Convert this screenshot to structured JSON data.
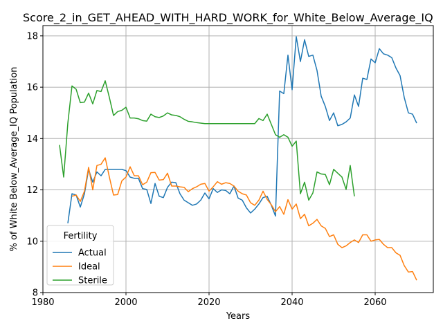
{
  "chart_data": {
    "type": "line",
    "title": "Score_2_in_GET_AHEAD_WITH_HARD_WORK_for_White_Below_Average_IQ",
    "xlabel": "Years",
    "ylabel": "% of White Below_Average_IQ Population",
    "xlim": [
      1980,
      2074
    ],
    "ylim": [
      8,
      18.4
    ],
    "x_ticks": [
      1980,
      2000,
      2020,
      2040,
      2060
    ],
    "y_ticks": [
      8,
      10,
      12,
      14,
      16,
      18
    ],
    "grid": true,
    "legend": {
      "title": "Fertility",
      "placement": "lower-left"
    },
    "series": [
      {
        "name": "Actual",
        "color": "#1f77b4",
        "x": [
          1986,
          1987,
          1988,
          1989,
          1990,
          1991,
          1992,
          1993,
          1994,
          1995,
          1996,
          1997,
          1998,
          1999,
          2000,
          2001,
          2002,
          2003,
          2004,
          2005,
          2006,
          2007,
          2008,
          2009,
          2010,
          2011,
          2012,
          2013,
          2014,
          2015,
          2016,
          2017,
          2018,
          2019,
          2020,
          2021,
          2022,
          2023,
          2024,
          2025,
          2026,
          2027,
          2028,
          2029,
          2030,
          2031,
          2032,
          2033,
          2034,
          2035,
          2036,
          2037,
          2038,
          2039,
          2040,
          2041,
          2042,
          2043,
          2044,
          2045,
          2046,
          2047,
          2048,
          2049,
          2050,
          2051,
          2052,
          2053,
          2054,
          2055,
          2056,
          2057,
          2058,
          2059,
          2060,
          2061,
          2062,
          2063,
          2064,
          2065,
          2066,
          2067,
          2068,
          2069,
          2070
        ],
        "values": [
          10.7,
          11.85,
          11.8,
          11.33,
          11.85,
          12.8,
          12.3,
          12.7,
          12.55,
          12.8,
          12.8,
          12.8,
          12.8,
          12.8,
          12.75,
          12.5,
          12.45,
          12.45,
          12.05,
          12.02,
          11.47,
          12.25,
          11.75,
          11.7,
          12.1,
          12.3,
          12.28,
          11.85,
          11.6,
          11.5,
          11.4,
          11.45,
          11.6,
          11.88,
          11.65,
          12.05,
          11.9,
          12.0,
          11.98,
          11.85,
          12.15,
          11.68,
          11.6,
          11.3,
          11.1,
          11.25,
          11.45,
          11.7,
          11.75,
          11.4,
          10.98,
          15.85,
          15.75,
          17.25,
          15.9,
          17.97,
          17.0,
          17.85,
          17.2,
          17.25,
          16.65,
          15.65,
          15.25,
          14.7,
          15.0,
          14.5,
          14.55,
          14.65,
          14.8,
          15.7,
          15.25,
          16.35,
          16.3,
          17.1,
          16.95,
          17.5,
          17.3,
          17.25,
          17.15,
          16.75,
          16.45,
          15.6,
          15.0,
          14.95,
          14.6
        ]
      },
      {
        "name": "Ideal",
        "color": "#ff7f0e",
        "x": [
          1987,
          1988,
          1989,
          1990,
          1991,
          1992,
          1993,
          1994,
          1995,
          1996,
          1997,
          1998,
          1999,
          2000,
          2001,
          2002,
          2003,
          2004,
          2005,
          2006,
          2007,
          2008,
          2009,
          2010,
          2011,
          2012,
          2013,
          2014,
          2015,
          2016,
          2017,
          2018,
          2019,
          2020,
          2021,
          2022,
          2023,
          2024,
          2025,
          2026,
          2027,
          2028,
          2029,
          2030,
          2031,
          2032,
          2033,
          2034,
          2035,
          2036,
          2037,
          2038,
          2039,
          2040,
          2041,
          2042,
          2043,
          2044,
          2045,
          2046,
          2047,
          2048,
          2049,
          2050,
          2051,
          2052,
          2053,
          2054,
          2055,
          2056,
          2057,
          2058,
          2059,
          2060,
          2061,
          2062,
          2063,
          2064,
          2065,
          2066,
          2067,
          2068,
          2069,
          2070
        ],
        "values": [
          11.75,
          11.8,
          11.55,
          11.95,
          12.88,
          12.0,
          12.95,
          13.0,
          13.25,
          12.5,
          11.8,
          11.82,
          12.35,
          12.5,
          12.9,
          12.55,
          12.55,
          12.2,
          12.3,
          12.67,
          12.68,
          12.38,
          12.4,
          12.65,
          12.15,
          12.15,
          12.12,
          12.1,
          11.93,
          12.05,
          12.12,
          12.22,
          12.25,
          11.95,
          12.12,
          12.32,
          12.22,
          12.28,
          12.25,
          12.15,
          11.95,
          11.85,
          11.8,
          11.5,
          11.4,
          11.6,
          11.95,
          11.63,
          11.42,
          11.15,
          11.35,
          11.05,
          11.62,
          11.25,
          11.45,
          10.88,
          11.05,
          10.6,
          10.7,
          10.85,
          10.6,
          10.5,
          10.18,
          10.25,
          9.88,
          9.75,
          9.82,
          9.95,
          10.05,
          9.95,
          10.25,
          10.25,
          10.0,
          10.05,
          10.07,
          9.88,
          9.75,
          9.75,
          9.55,
          9.45,
          9.05,
          8.8,
          8.82,
          8.48
        ]
      },
      {
        "name": "Sterile",
        "color": "#2ca02c",
        "x": [
          1984,
          1985,
          1986,
          1987,
          1988,
          1989,
          1990,
          1991,
          1992,
          1993,
          1994,
          1995,
          1996,
          1997,
          1998,
          1999,
          2000,
          2001,
          2002,
          2003,
          2004,
          2005,
          2006,
          2007,
          2008,
          2009,
          2010,
          2011,
          2012,
          2013,
          2014,
          2015,
          2016,
          2017,
          2018,
          2019,
          2020,
          2021,
          2022,
          2023,
          2024,
          2025,
          2026,
          2027,
          2028,
          2029,
          2030,
          2031,
          2032,
          2033,
          2034,
          2035,
          2036,
          2037,
          2038,
          2039,
          2040,
          2041,
          2042,
          2043,
          2044,
          2045,
          2046,
          2047,
          2048,
          2049,
          2050,
          2051,
          2052,
          2053,
          2054,
          2055
        ],
        "values": [
          13.75,
          12.5,
          14.6,
          16.05,
          15.92,
          15.4,
          15.42,
          15.77,
          15.35,
          15.87,
          15.83,
          16.25,
          15.6,
          14.9,
          15.05,
          15.1,
          15.22,
          14.8,
          14.8,
          14.77,
          14.7,
          14.68,
          14.95,
          14.85,
          14.82,
          14.88,
          15.0,
          14.92,
          14.9,
          14.85,
          14.75,
          14.67,
          14.65,
          14.62,
          14.6,
          14.58,
          14.58,
          14.58,
          14.58,
          14.58,
          14.58,
          14.58,
          14.58,
          14.58,
          14.58,
          14.58,
          14.58,
          14.58,
          14.78,
          14.7,
          14.95,
          14.55,
          14.15,
          14.05,
          14.15,
          14.05,
          13.7,
          13.9,
          11.85,
          12.3,
          11.6,
          11.88,
          12.7,
          12.62,
          12.6,
          12.2,
          12.8,
          12.65,
          12.5,
          12.02,
          12.95,
          11.75
        ]
      }
    ]
  }
}
